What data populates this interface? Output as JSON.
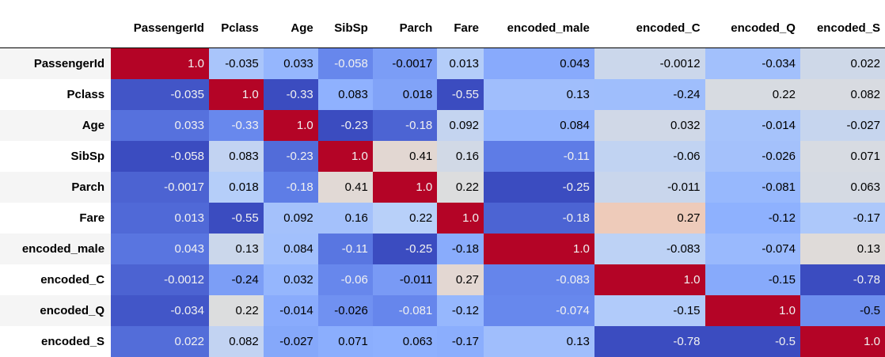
{
  "chart_data": {
    "type": "heatmap",
    "columns": [
      "PassengerId",
      "Pclass",
      "Age",
      "SibSp",
      "Parch",
      "Fare",
      "encoded_male",
      "encoded_C",
      "encoded_Q",
      "encoded_S"
    ],
    "rows": [
      "PassengerId",
      "Pclass",
      "Age",
      "SibSp",
      "Parch",
      "Fare",
      "encoded_male",
      "encoded_C",
      "encoded_Q",
      "encoded_S"
    ],
    "values": [
      [
        "1.0",
        "-0.035",
        "0.033",
        "-0.058",
        "-0.0017",
        "0.013",
        "0.043",
        "-0.0012",
        "-0.034",
        "0.022"
      ],
      [
        "-0.035",
        "1.0",
        "-0.33",
        "0.083",
        "0.018",
        "-0.55",
        "0.13",
        "-0.24",
        "0.22",
        "0.082"
      ],
      [
        "0.033",
        "-0.33",
        "1.0",
        "-0.23",
        "-0.18",
        "0.092",
        "0.084",
        "0.032",
        "-0.014",
        "-0.027"
      ],
      [
        "-0.058",
        "0.083",
        "-0.23",
        "1.0",
        "0.41",
        "0.16",
        "-0.11",
        "-0.06",
        "-0.026",
        "0.071"
      ],
      [
        "-0.0017",
        "0.018",
        "-0.18",
        "0.41",
        "1.0",
        "0.22",
        "-0.25",
        "-0.011",
        "-0.081",
        "0.063"
      ],
      [
        "0.013",
        "-0.55",
        "0.092",
        "0.16",
        "0.22",
        "1.0",
        "-0.18",
        "0.27",
        "-0.12",
        "-0.17"
      ],
      [
        "0.043",
        "0.13",
        "0.084",
        "-0.11",
        "-0.25",
        "-0.18",
        "1.0",
        "-0.083",
        "-0.074",
        "0.13"
      ],
      [
        "-0.0012",
        "-0.24",
        "0.032",
        "-0.06",
        "-0.011",
        "0.27",
        "-0.083",
        "1.0",
        "-0.15",
        "-0.78"
      ],
      [
        "-0.034",
        "0.22",
        "-0.014",
        "-0.026",
        "-0.081",
        "-0.12",
        "-0.074",
        "-0.15",
        "1.0",
        "-0.5"
      ],
      [
        "0.022",
        "0.082",
        "-0.027",
        "0.071",
        "0.063",
        "-0.17",
        "0.13",
        "-0.78",
        "-0.5",
        "1.0"
      ]
    ],
    "colormap": "coolwarm",
    "colormap_low": "#3b4cc0",
    "colormap_mid": "#dddddd",
    "colormap_high": "#b40426"
  }
}
